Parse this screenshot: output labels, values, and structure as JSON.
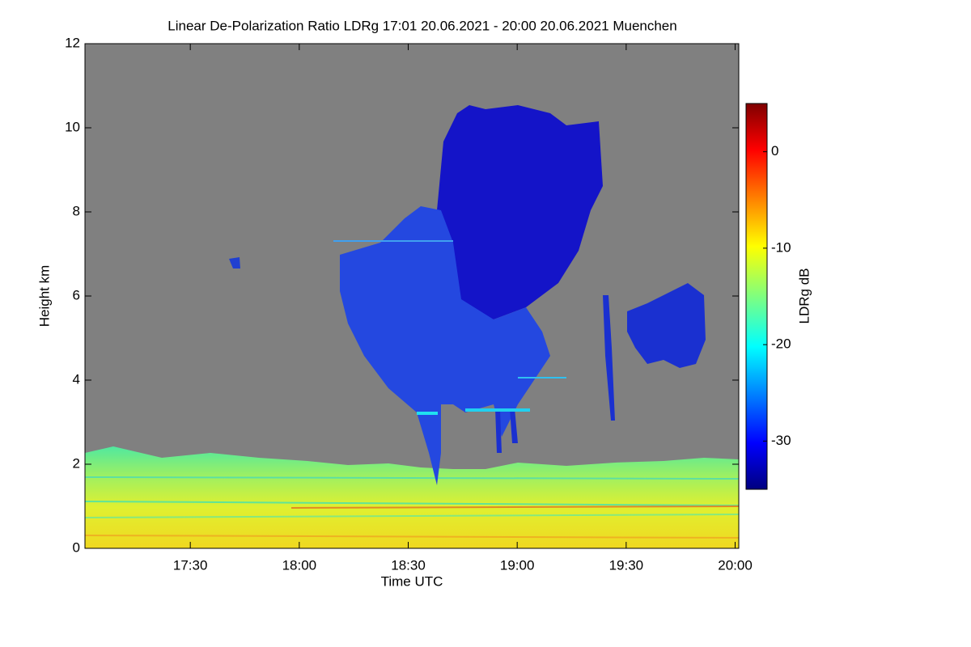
{
  "chart_data": {
    "type": "heatmap",
    "title": "Linear De-Polarization Ratio LDRg   17:01 20.06.2021 - 20:00 20.06.2021 Muenchen",
    "x_label": "Time UTC",
    "y_label": "Height km",
    "colorbar_label": "LDRg dB",
    "xlim": [
      1021,
      1201
    ],
    "xticks": [
      {
        "value": 1050,
        "label": "17:30"
      },
      {
        "value": 1080,
        "label": "18:00"
      },
      {
        "value": 1110,
        "label": "18:30"
      },
      {
        "value": 1140,
        "label": "19:00"
      },
      {
        "value": 1170,
        "label": "19:30"
      },
      {
        "value": 1200,
        "label": "20:00"
      }
    ],
    "ylim": [
      0,
      12
    ],
    "yticks": [
      0,
      2,
      4,
      6,
      8,
      10,
      12
    ],
    "clim": [
      -35,
      5
    ],
    "cticks": [
      -30,
      -20,
      -10,
      0
    ],
    "colormap": "jet"
  }
}
